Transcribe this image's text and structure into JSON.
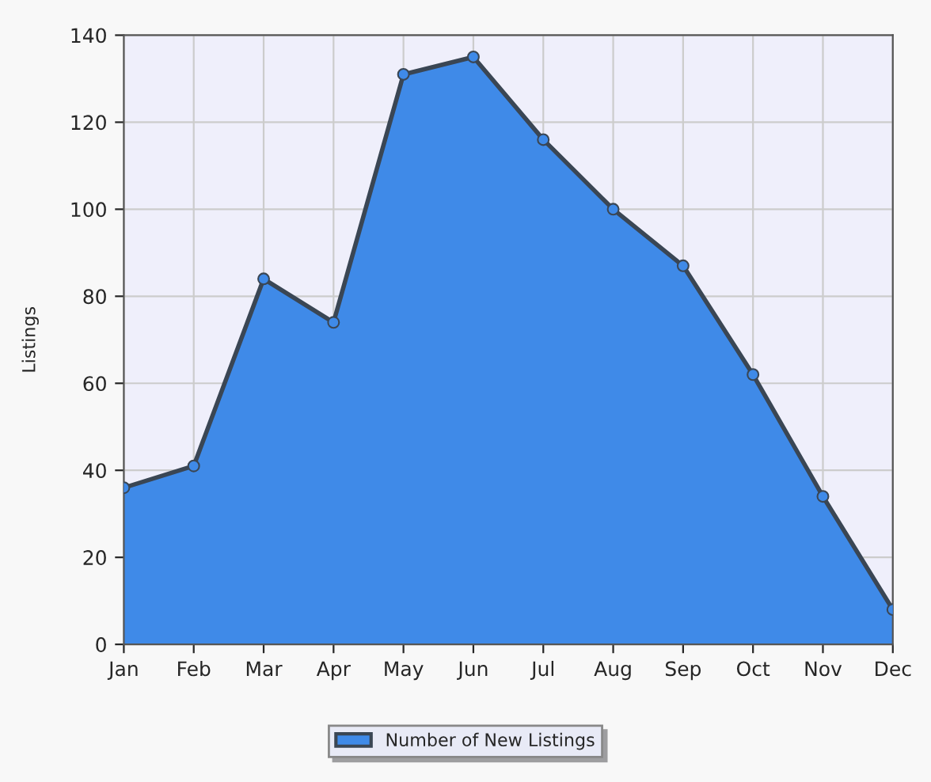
{
  "chart_data": {
    "type": "area",
    "ylabel": "Listings",
    "categories": [
      "Jan",
      "Feb",
      "Mar",
      "Apr",
      "May",
      "Jun",
      "Jul",
      "Aug",
      "Sep",
      "Oct",
      "Nov",
      "Dec"
    ],
    "series": [
      {
        "name": "Number of New Listings",
        "color": "#3f8ae8",
        "values": [
          36,
          41,
          84,
          74,
          131,
          135,
          116,
          100,
          87,
          62,
          34,
          8
        ]
      }
    ],
    "ylim": [
      0,
      140
    ],
    "yticks": [
      0,
      20,
      40,
      60,
      80,
      100,
      120,
      140
    ],
    "grid": true,
    "legend": "bottom",
    "marker": "circle",
    "line_style": "solid"
  }
}
